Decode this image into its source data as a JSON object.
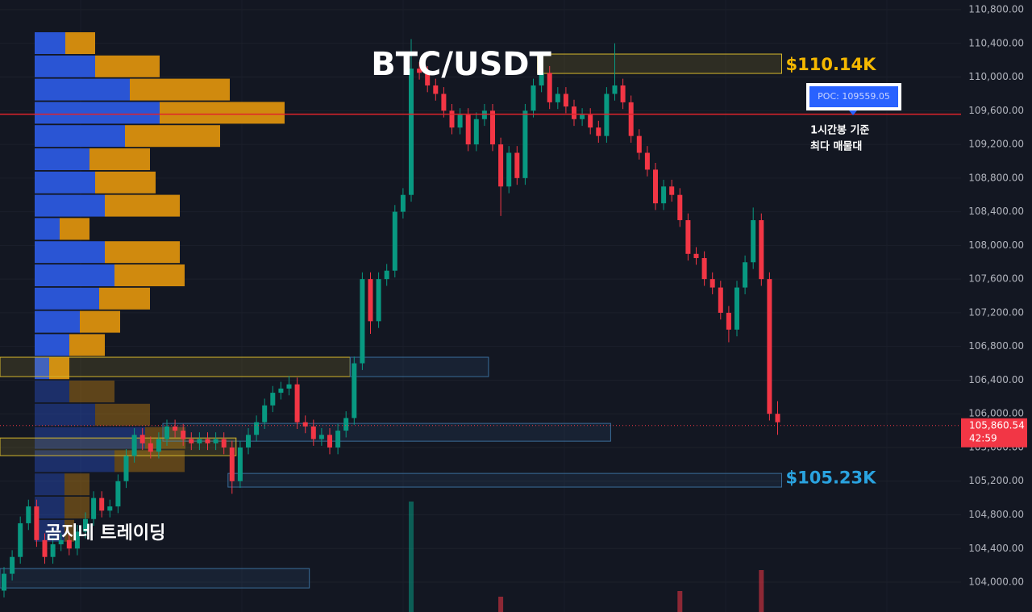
{
  "chart_data": {
    "type": "candlestick",
    "title": "BTC/USDT",
    "watermark": "곰지네 트레이딩",
    "annotation_lines": [
      "1시간봉 기준",
      "최다 매물대"
    ],
    "ylim": [
      103646,
      110915
    ],
    "yticks": [
      {
        "value": 104000,
        "label": "104,000.00"
      },
      {
        "value": 104400,
        "label": "104,400.00"
      },
      {
        "value": 104800,
        "label": "104,800.00"
      },
      {
        "value": 105200,
        "label": "105,200.00"
      },
      {
        "value": 105600,
        "label": "105,600.00"
      },
      {
        "value": 106000,
        "label": "106,000.00"
      },
      {
        "value": 106400,
        "label": "106,400.00"
      },
      {
        "value": 106800,
        "label": "106,800.00"
      },
      {
        "value": 107200,
        "label": "107,200.00"
      },
      {
        "value": 107600,
        "label": "107,600.00"
      },
      {
        "value": 108000,
        "label": "108,000.00"
      },
      {
        "value": 108400,
        "label": "108,400.00"
      },
      {
        "value": 108800,
        "label": "108,800.00"
      },
      {
        "value": 109200,
        "label": "109,200.00"
      },
      {
        "value": 109600,
        "label": "109,600.00"
      },
      {
        "value": 110000,
        "label": "110,000.00"
      },
      {
        "value": 110400,
        "label": "110,400.00"
      },
      {
        "value": 110800,
        "label": "110,800.00"
      }
    ],
    "grid": true,
    "up_color": "#089981",
    "down_color": "#f23645",
    "open": [
      103900,
      104100,
      104300,
      104700,
      104900,
      104500,
      104300,
      104450,
      104500,
      104400,
      104600,
      104750,
      105000,
      104850,
      104900,
      105200,
      105500,
      105750,
      105650,
      105550,
      105700,
      105850,
      105800,
      105700,
      105650,
      105700,
      105650,
      105700,
      105600,
      105200,
      105600,
      105750,
      105900,
      106100,
      106250,
      106300,
      106350,
      105900,
      105850,
      105700,
      105750,
      105600,
      105800,
      105950,
      106600,
      107600,
      107100,
      107600,
      107700,
      108400,
      108600,
      110100,
      110050,
      109900,
      109800,
      109600,
      109400,
      109550,
      109200,
      109500,
      109600,
      109200,
      108700,
      109100,
      108800,
      109600,
      109900,
      110050,
      109700,
      109800,
      109650,
      109500,
      109550,
      109400,
      109300,
      109800,
      109900,
      109700,
      109300,
      109100,
      108900,
      108500,
      108700,
      108600,
      108300,
      107900,
      107850,
      107600,
      107500,
      107200,
      107000,
      107500,
      107800,
      108300,
      107600,
      106000
    ],
    "high": [
      104180,
      104380,
      104780,
      104980,
      104980,
      104580,
      104530,
      104580,
      104580,
      104680,
      104830,
      105080,
      105080,
      104980,
      105280,
      105580,
      105830,
      105830,
      105730,
      105780,
      105930,
      105930,
      105880,
      105780,
      105780,
      105780,
      105780,
      105780,
      105680,
      105680,
      105830,
      105980,
      106180,
      106330,
      106380,
      106450,
      106430,
      105980,
      105930,
      105830,
      105830,
      105880,
      106030,
      106680,
      107680,
      107680,
      107680,
      107780,
      108480,
      108680,
      110450,
      110180,
      110130,
      109980,
      109880,
      109680,
      109630,
      109630,
      109580,
      109680,
      109680,
      109280,
      109180,
      109180,
      109680,
      109980,
      110130,
      110130,
      109880,
      109880,
      109730,
      109630,
      109630,
      109480,
      109880,
      110400,
      109980,
      109780,
      109380,
      109180,
      108980,
      108780,
      108780,
      108680,
      108380,
      107980,
      107930,
      107680,
      107580,
      107280,
      107580,
      107880,
      108450,
      108380,
      107680,
      106150
    ],
    "low": [
      103820,
      104020,
      104220,
      104620,
      104420,
      104220,
      104220,
      104370,
      104320,
      104320,
      104520,
      104670,
      104770,
      104770,
      104820,
      105120,
      105420,
      105570,
      105470,
      105470,
      105620,
      105720,
      105620,
      105570,
      105570,
      105570,
      105570,
      105520,
      105050,
      105120,
      105520,
      105670,
      105820,
      106020,
      106170,
      106220,
      105820,
      105770,
      105620,
      105620,
      105520,
      105520,
      105720,
      105870,
      106520,
      106950,
      107020,
      107520,
      107620,
      108320,
      108520,
      109970,
      109820,
      109720,
      109520,
      109320,
      109320,
      109120,
      109120,
      109420,
      109120,
      108350,
      108620,
      108720,
      108720,
      109520,
      109820,
      109620,
      109620,
      109570,
      109420,
      109420,
      109320,
      109220,
      109220,
      109720,
      109620,
      109220,
      109020,
      108820,
      108420,
      108420,
      108520,
      108220,
      107820,
      107770,
      107520,
      107420,
      107120,
      106850,
      106920,
      107420,
      107720,
      107520,
      105920,
      105750
    ],
    "close": [
      104100,
      104300,
      104700,
      104900,
      104500,
      104300,
      104450,
      104500,
      104400,
      104600,
      104750,
      105000,
      104850,
      104900,
      105200,
      105500,
      105750,
      105650,
      105550,
      105700,
      105850,
      105800,
      105700,
      105650,
      105700,
      105650,
      105700,
      105600,
      105200,
      105600,
      105750,
      105900,
      106100,
      106250,
      106300,
      106350,
      105900,
      105850,
      105700,
      105750,
      105600,
      105800,
      105950,
      106600,
      107600,
      107100,
      107600,
      107700,
      108400,
      108600,
      110100,
      110050,
      109900,
      109800,
      109600,
      109400,
      109550,
      109200,
      109500,
      109600,
      109200,
      108700,
      109100,
      108800,
      109600,
      109900,
      110050,
      109700,
      109800,
      109650,
      109500,
      109550,
      109400,
      109300,
      109800,
      109900,
      109700,
      109300,
      109100,
      108900,
      108500,
      108700,
      108600,
      108300,
      107900,
      107850,
      107600,
      107500,
      107200,
      107000,
      107500,
      107800,
      108300,
      107600,
      106000,
      105900
    ],
    "volume": [
      null,
      null,
      null,
      null,
      null,
      null,
      null,
      null,
      null,
      null,
      null,
      null,
      null,
      null,
      null,
      null,
      null,
      null,
      null,
      null,
      null,
      null,
      null,
      null,
      null,
      null,
      null,
      null,
      null,
      null,
      null,
      null,
      null,
      null,
      null,
      null,
      null,
      null,
      null,
      null,
      null,
      null,
      null,
      null,
      null,
      null,
      null,
      null,
      null,
      null,
      137,
      null,
      null,
      null,
      null,
      null,
      null,
      null,
      null,
      null,
      null,
      19,
      null,
      null,
      null,
      null,
      null,
      null,
      null,
      null,
      null,
      null,
      null,
      null,
      null,
      null,
      null,
      null,
      null,
      null,
      null,
      null,
      null,
      26,
      null,
      null,
      null,
      null,
      null,
      null,
      null,
      null,
      null,
      52,
      null,
      null
    ],
    "volume_profile": {
      "value_area_rows": [
        0,
        14
      ],
      "series": [
        {
          "color": "#2a55d4",
          "values": [
            38,
            75,
            118,
            155,
            112,
            68,
            75,
            87,
            31,
            87,
            99,
            80,
            56,
            43,
            18,
            43,
            75,
            137,
            99,
            37,
            37,
            37
          ]
        },
        {
          "color": "#d08a0e",
          "values": [
            37,
            80,
            124,
            155,
            118,
            75,
            75,
            93,
            37,
            93,
            87,
            63,
            50,
            44,
            25,
            56,
            68,
            50,
            87,
            31,
            31,
            12
          ]
        }
      ]
    },
    "zones": [
      {
        "range": [
          110043,
          110273
        ],
        "start": 66,
        "end": 95,
        "color": "#d4b62c",
        "label": {
          "value": 110140,
          "label": "$110.14K"
        },
        "label_color": "#f5b800"
      },
      {
        "range": [
          106442,
          106672
        ],
        "start": 0,
        "end": 42,
        "color": "#d4b62c"
      },
      {
        "range": [
          106442,
          106672
        ],
        "start": 43,
        "end": 59,
        "color": "#3a6d9a"
      },
      {
        "range": [
          105675,
          105886
        ],
        "start": 20,
        "end": 74,
        "color": "#3a6d9a"
      },
      {
        "range": [
          105503,
          105713
        ],
        "start": 0,
        "end": 28,
        "color": "#d4b62c"
      },
      {
        "range": [
          105130,
          105292
        ],
        "start": 28,
        "end": 95,
        "color": "#3a6d9a",
        "label": {
          "value": 105230,
          "label": "$105.23K"
        },
        "label_color": "#2aa3e0"
      },
      {
        "range": [
          103932,
          104162
        ],
        "start": 0,
        "end": 37,
        "color": "#3a6d9a"
      }
    ],
    "poc": {
      "value": 109559.05,
      "label": "POC: 109559.05",
      "color": "#e0232b"
    },
    "last_price": {
      "value": 105860.54,
      "label": "105,860.54",
      "countdown": "42:59",
      "color": "#f23645"
    }
  }
}
